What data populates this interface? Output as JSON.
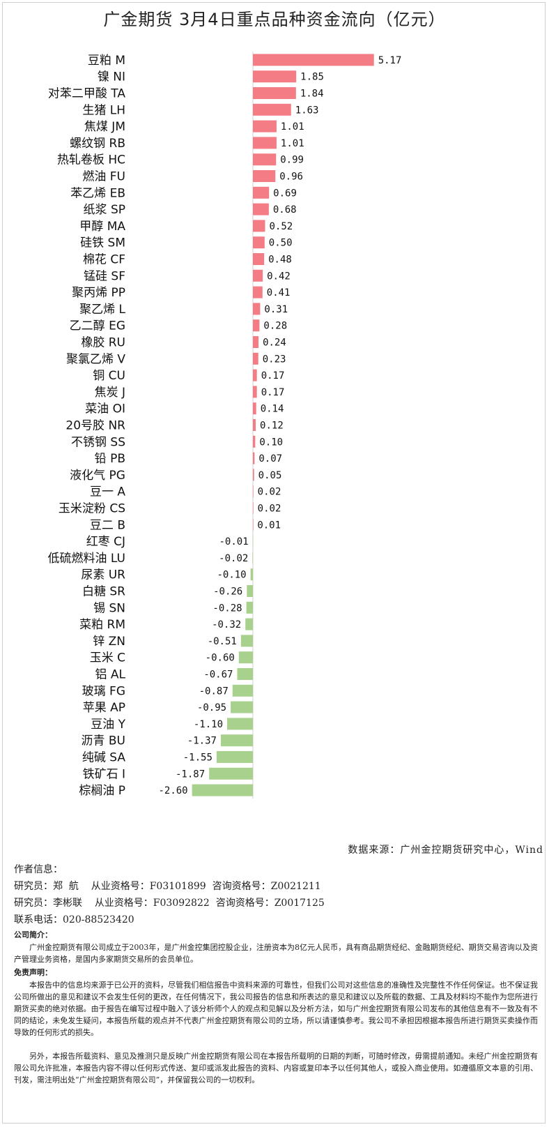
{
  "chart_data": {
    "type": "bar",
    "orientation": "horizontal",
    "title": "广金期货 3月4日重点品种资金流向（亿元）",
    "categories": [
      "豆粕 M",
      "镍 NI",
      "对苯二甲酸 TA",
      "生猪 LH",
      "焦煤 JM",
      "螺纹钢 RB",
      "热轧卷板 HC",
      "燃油 FU",
      "苯乙烯 EB",
      "纸浆 SP",
      "甲醇 MA",
      "硅铁 SM",
      "棉花 CF",
      "锰硅 SF",
      "聚丙烯 PP",
      "聚乙烯 L",
      "乙二醇 EG",
      "橡胶 RU",
      "聚氯乙烯 V",
      "铜 CU",
      "焦炭 J",
      "菜油 OI",
      "20号胶 NR",
      "不锈钢 SS",
      "铅 PB",
      "液化气 PG",
      "豆一 A",
      "玉米淀粉 CS",
      "豆二 B",
      "红枣 CJ",
      "低硫燃料油 LU",
      "尿素 UR",
      "白糖 SR",
      "锡 SN",
      "菜粕 RM",
      "锌 ZN",
      "玉米 C",
      "铝 AL",
      "玻璃 FG",
      "苹果 AP",
      "豆油 Y",
      "沥青 BU",
      "纯碱 SA",
      "铁矿石 I",
      "棕榈油 P"
    ],
    "values": [
      5.17,
      1.85,
      1.84,
      1.63,
      1.01,
      1.01,
      0.99,
      0.96,
      0.69,
      0.68,
      0.52,
      0.5,
      0.48,
      0.42,
      0.41,
      0.31,
      0.28,
      0.24,
      0.23,
      0.17,
      0.17,
      0.14,
      0.12,
      0.1,
      0.07,
      0.05,
      0.02,
      0.02,
      0.01,
      -0.01,
      -0.02,
      -0.1,
      -0.26,
      -0.28,
      -0.32,
      -0.51,
      -0.6,
      -0.67,
      -0.87,
      -0.95,
      -1.1,
      -1.37,
      -1.55,
      -1.87,
      -2.6
    ],
    "value_labels": [
      "5.17",
      "1.85",
      "1.84",
      "1.63",
      "1.01",
      "1.01",
      "0.99",
      "0.96",
      "0.69",
      "0.68",
      "0.52",
      "0.50",
      "0.48",
      "0.42",
      "0.41",
      "0.31",
      "0.28",
      "0.24",
      "0.23",
      "0.17",
      "0.17",
      "0.14",
      "0.12",
      "0.10",
      "0.07",
      "0.05",
      "0.02",
      "0.02",
      "0.01",
      "-0.01",
      "-0.02",
      "-0.10",
      "-0.26",
      "-0.28",
      "-0.32",
      "-0.51",
      "-0.60",
      "-0.67",
      "-0.87",
      "-0.95",
      "-1.10",
      "-1.37",
      "-1.55",
      "-1.87",
      "-2.60"
    ],
    "positive_color": "#f47c85",
    "negative_color": "#a9d18e",
    "grid": false
  },
  "source": "数据来源：广州金控期货研究中心，Wind",
  "author": {
    "heading": "作者信息：",
    "researchers": [
      {
        "role": "研究员：郑  航",
        "qual": "从业资格号：F03101899",
        "consult": "咨询资格号：Z0021211"
      },
      {
        "role": "研究员：李彬联",
        "qual": "从业资格号：F03092822",
        "consult": "咨询资格号：Z0017125"
      }
    ],
    "phone": "联系电话：020-88523420"
  },
  "company": {
    "heading": "公司简介：",
    "text": "广州金控期货有限公司成立于2003年，是广州金控集团控股企业，注册资本为8亿元人民币，具有商品期货经纪、金融期货经纪、期货交易咨询以及资产管理业务资格，是国内多家期货交易所的会员单位。"
  },
  "disclaimer": {
    "heading": "免责声明：",
    "para1": "本报告中的信息均来源于已公开的资料，尽管我们相信报告中资料来源的可靠性，但我们公司对这些信息的准确性及完整性不作任何保证。也不保证我公司所做出的意见和建议不会发生任何的更改，在任何情况下，我公司报告的信息和所表达的意见和建议以及所载的数据、工具及材料均不能作为您所进行期货买卖的绝对依据。由于报告在编写过程中融入了该分析师个人的观点和见解以及分析方法，如与广州金控期货有限公司发布的其他信息有不一致及有不同的结论，未免发生疑问，本报告所载的观点并不代表广州金控期货有限公司的立场，所以请谨慎参考。我公司不承担因根据本报告所进行期货买卖操作而导致的任何形式的损失。",
    "para2": "另外，本报告所载资料、意见及推测只是反映广州金控期货有限公司在本报告所载明的日期的判断，可随时修改，毋需提前通知。未经广州金控期货有限公司允许批准，本报告内容不得以任何形式传送、复印或派发此报告的资料、内容或复印本予以任何其他人，或投入商业使用。如遵循原文本意的引用、刊发，需注明出处“广州金控期货有限公司”，并保留我公司的一切权利。"
  }
}
